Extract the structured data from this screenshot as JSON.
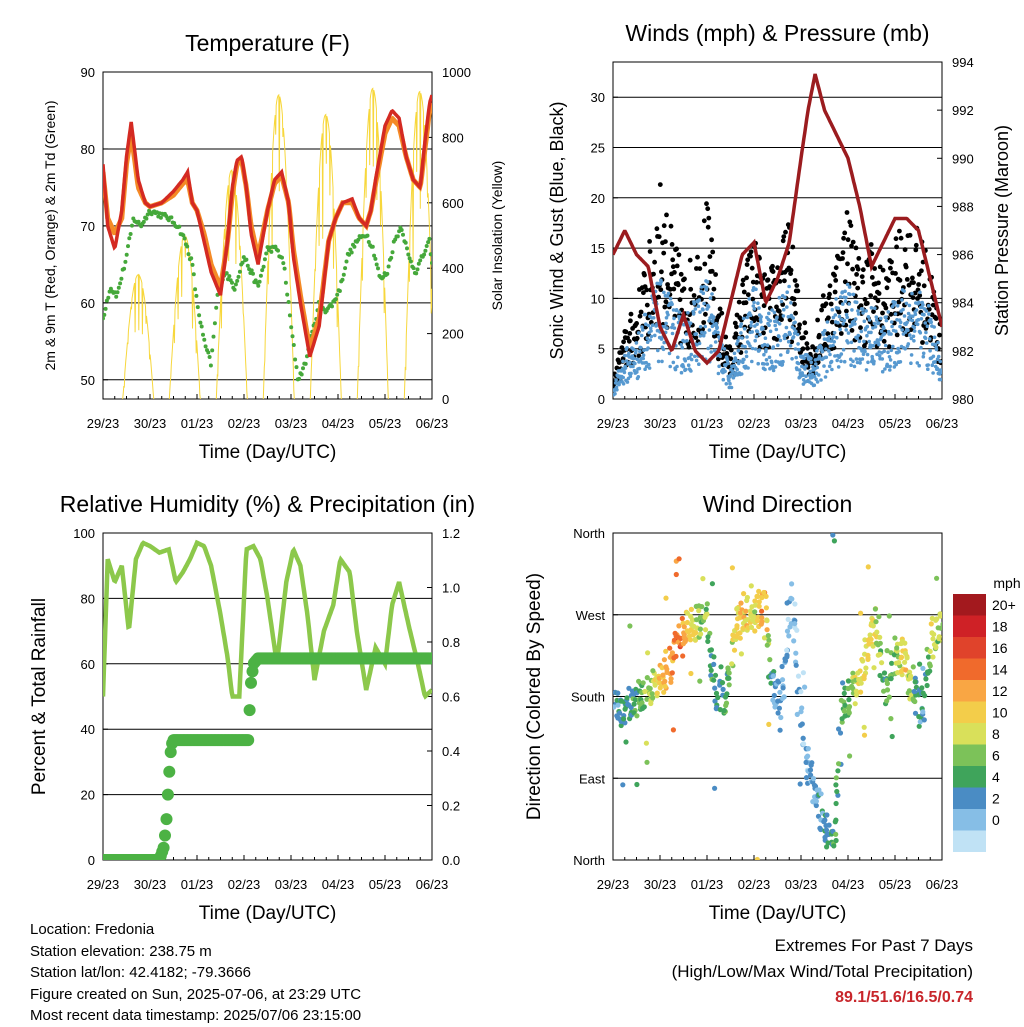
{
  "x_tick_labels": [
    "29/23",
    "30/23",
    "01/23",
    "02/23",
    "03/23",
    "04/23",
    "05/23",
    "06/23"
  ],
  "panels": {
    "temperature": {
      "title": "Temperature (F)",
      "ylabel_left": "2m & 9m T (Red, Orange) & 2m Td (Green)",
      "ylabel_right": "Solar Insolation (Yellow)",
      "xlabel": "Time (Day/UTC)",
      "yticks_left": [
        "50",
        "60",
        "70",
        "80",
        "90"
      ],
      "yticks_right": [
        "0",
        "200",
        "400",
        "600",
        "800",
        "1000"
      ]
    },
    "winds": {
      "title": "Winds (mph) & Pressure (mb)",
      "ylabel_left": "Sonic Wind & Gust (Blue, Black)",
      "ylabel_right": "Station Pressure (Maroon)",
      "xlabel": "Time (Day/UTC)",
      "yticks_left": [
        "0",
        "5",
        "10",
        "15",
        "20",
        "25",
        "30"
      ],
      "yticks_right": [
        "980",
        "982",
        "984",
        "986",
        "988",
        "990",
        "992",
        "994"
      ]
    },
    "humidity": {
      "title": "Relative Humidity (%) & Precipitation (in)",
      "ylabel_left": "Percent & Total Rainfall",
      "xlabel": "Time (Day/UTC)",
      "yticks_left": [
        "0",
        "20",
        "40",
        "60",
        "80",
        "100"
      ],
      "yticks_right": [
        "0.0",
        "0.2",
        "0.4",
        "0.6",
        "0.8",
        "1.0",
        "1.2"
      ]
    },
    "direction": {
      "title": "Wind Direction",
      "ylabel_left": "Direction (Colored By Speed)",
      "xlabel": "Time (Day/UTC)",
      "yticks_left": [
        "North",
        "East",
        "South",
        "West",
        "North"
      ],
      "legend_title": "mph",
      "legend_labels": [
        "20+",
        "18",
        "16",
        "14",
        "12",
        "10",
        "8",
        "6",
        "4",
        "2",
        "0"
      ],
      "legend_colors": [
        "#a3191e",
        "#cf2126",
        "#e0432b",
        "#f06a2c",
        "#f9a644",
        "#f3cd4a",
        "#d9e05a",
        "#7cc259",
        "#3fa45b",
        "#4a8cc4",
        "#86bee6",
        "#c0e2f5"
      ]
    }
  },
  "info": {
    "location": "Location: Fredonia",
    "elevation": "Station elevation: 238.75 m",
    "latlon": "Station lat/lon: 42.4182; -79.3666",
    "created": "Figure created on Sun, 2025-07-06, at 23:29 UTC",
    "recent": "Most recent data timestamp: 2025/07/06 23:15:00"
  },
  "extremes": {
    "line1": "Extremes For Past 7 Days",
    "line2": "(High/Low/Max Wind/Total Precipitation)",
    "values": "89.1/51.6/16.5/0.74"
  },
  "colors": {
    "temp2m": "#d42a22",
    "temp9m": "#f48a26",
    "dewpoint": "#45a83a",
    "solar": "#f7d73c",
    "gust": "#000000",
    "wind": "#5799d0",
    "pressure": "#9b1c1f",
    "rh": "#8cc84b",
    "rain": "#4cb244"
  },
  "chart_data": [
    {
      "type": "line",
      "title": "Temperature (F)",
      "xlabel": "Time (Day/UTC)",
      "ylabel": "2m & 9m T (Red, Orange) & 2m Td (Green)",
      "ylabel_right": "Solar Insolation (Yellow)",
      "x_categories": [
        "29/23",
        "30/23",
        "01/23",
        "02/23",
        "03/23",
        "04/23",
        "05/23",
        "06/23"
      ],
      "x_days": [
        0,
        1,
        2,
        3,
        4,
        5,
        6,
        7
      ],
      "ylim": [
        47.5,
        90
      ],
      "ylim_right": [
        0,
        1000
      ],
      "series": [
        {
          "name": "2m T",
          "axis": "left",
          "x": [
            0,
            0.1,
            0.25,
            0.4,
            0.5,
            0.6,
            0.75,
            0.9,
            1.0,
            1.25,
            1.5,
            1.7,
            1.8,
            1.9,
            2.0,
            2.15,
            2.3,
            2.5,
            2.65,
            2.75,
            2.85,
            2.95,
            3.05,
            3.15,
            3.3,
            3.5,
            3.65,
            3.8,
            3.95,
            4.05,
            4.2,
            4.4,
            4.6,
            4.8,
            4.95,
            5.1,
            5.3,
            5.45,
            5.6,
            5.7,
            5.8,
            6.0,
            6.15,
            6.3,
            6.45,
            6.6,
            6.75,
            6.85,
            6.95,
            7.0
          ],
          "y": [
            78,
            70,
            67,
            72,
            79,
            83.5,
            76,
            73,
            72.5,
            73,
            74.5,
            76,
            77,
            73,
            72,
            68,
            64,
            61,
            68,
            75,
            78.5,
            79,
            75,
            69,
            65,
            72,
            76,
            77,
            73,
            66,
            60,
            53,
            57,
            68,
            71,
            73,
            73.5,
            71,
            70,
            72,
            76,
            83,
            85,
            84,
            79,
            76,
            75,
            81,
            86,
            87
          ]
        },
        {
          "name": "9m T",
          "axis": "left",
          "x": [
            0,
            0.1,
            0.25,
            0.4,
            0.5,
            0.6,
            0.75,
            0.9,
            1.0,
            1.25,
            1.5,
            1.7,
            1.8,
            1.9,
            2.0,
            2.15,
            2.3,
            2.5,
            2.65,
            2.75,
            2.85,
            2.95,
            3.05,
            3.15,
            3.3,
            3.5,
            3.65,
            3.8,
            3.95,
            4.05,
            4.2,
            4.4,
            4.6,
            4.8,
            4.95,
            5.1,
            5.3,
            5.45,
            5.6,
            5.7,
            5.8,
            6.0,
            6.15,
            6.3,
            6.45,
            6.6,
            6.75,
            6.85,
            6.95,
            7.0
          ],
          "y": [
            77,
            71,
            69,
            71,
            78,
            82,
            75,
            73,
            72.5,
            73,
            74,
            75.5,
            76,
            73,
            72,
            69,
            65,
            62,
            68,
            74,
            78,
            78.5,
            75,
            70,
            66,
            72,
            75.5,
            76.5,
            73,
            67,
            61,
            54,
            58,
            68,
            71,
            73,
            73,
            71,
            70,
            72,
            75.5,
            82,
            84,
            83,
            79,
            76,
            75,
            80,
            85,
            86
          ]
        },
        {
          "name": "2m Td",
          "axis": "left",
          "x": [
            0,
            0.15,
            0.3,
            0.5,
            0.65,
            0.8,
            1.0,
            1.2,
            1.4,
            1.6,
            1.75,
            1.9,
            2.0,
            2.15,
            2.3,
            2.45,
            2.6,
            2.8,
            3.0,
            3.15,
            3.3,
            3.5,
            3.7,
            3.85,
            4.0,
            4.15,
            4.3,
            4.45,
            4.6,
            4.75,
            4.9,
            5.05,
            5.2,
            5.4,
            5.6,
            5.75,
            5.9,
            6.05,
            6.2,
            6.35,
            6.5,
            6.65,
            6.8,
            6.95,
            7.0
          ],
          "y": [
            58,
            62,
            61,
            66,
            71,
            70,
            72,
            71.5,
            71,
            70,
            68,
            65,
            60,
            55,
            52,
            62,
            64,
            62,
            66,
            64,
            62,
            67,
            67,
            65,
            57,
            50,
            52,
            56,
            60,
            59,
            60,
            62,
            66,
            68,
            69,
            67,
            63,
            64,
            68,
            70,
            66,
            64,
            66,
            68,
            65
          ]
        },
        {
          "name": "Solar Insolation",
          "axis": "right",
          "peaks_x": [
            0.75,
            1.74,
            2.74,
            3.74,
            4.74,
            5.74,
            6.74
          ],
          "peaks_y": [
            380,
            500,
            700,
            930,
            870,
            950,
            940
          ]
        }
      ]
    },
    {
      "type": "scatter",
      "title": "Winds (mph) & Pressure (mb)",
      "xlabel": "Time (Day/UTC)",
      "ylabel": "Sonic Wind & Gust (Blue, Black)",
      "ylabel_right": "Station Pressure (Maroon)",
      "x_categories": [
        "29/23",
        "30/23",
        "01/23",
        "02/23",
        "03/23",
        "04/23",
        "05/23",
        "06/23"
      ],
      "ylim": [
        0,
        33.5
      ],
      "ylim_right": [
        980,
        994
      ],
      "series": [
        {
          "name": "Gust envelope",
          "axis": "left",
          "x": [
            0,
            0.25,
            0.5,
            0.75,
            1.0,
            1.25,
            1.5,
            1.75,
            2.0,
            2.25,
            2.5,
            2.75,
            3.0,
            3.25,
            3.5,
            3.75,
            4.0,
            4.25,
            4.5,
            4.75,
            5.0,
            5.25,
            5.5,
            5.75,
            6.0,
            6.25,
            6.5,
            6.75,
            7.0
          ],
          "y": [
            2,
            7,
            10,
            15,
            22,
            17,
            13,
            15,
            20,
            10,
            5,
            12,
            17,
            12,
            15,
            18,
            9,
            6,
            11,
            15,
            20,
            14,
            16,
            13,
            16,
            18,
            17,
            14,
            7
          ]
        },
        {
          "name": "Wind envelope",
          "axis": "left",
          "x": [
            0,
            0.25,
            0.5,
            0.75,
            1.0,
            1.25,
            1.5,
            1.75,
            2.0,
            2.25,
            2.5,
            2.75,
            3.0,
            3.25,
            3.5,
            3.75,
            4.0,
            4.25,
            4.5,
            4.75,
            5.0,
            5.25,
            5.5,
            5.75,
            6.0,
            6.25,
            6.5,
            6.75,
            7.0
          ],
          "y": [
            1,
            5,
            6,
            10,
            12,
            10,
            8,
            10,
            13,
            7,
            3,
            8,
            12,
            8,
            10,
            12,
            5,
            4,
            7,
            10,
            12,
            9,
            10,
            8,
            10,
            12,
            11,
            9,
            4
          ]
        },
        {
          "name": "Station Pressure",
          "axis": "right",
          "x": [
            0,
            0.25,
            0.5,
            0.75,
            1.0,
            1.25,
            1.5,
            1.75,
            2.0,
            2.25,
            2.5,
            2.75,
            3.0,
            3.25,
            3.5,
            3.75,
            4.0,
            4.15,
            4.3,
            4.5,
            4.75,
            5.0,
            5.25,
            5.5,
            5.75,
            6.0,
            6.25,
            6.5,
            6.75,
            7.0
          ],
          "y": [
            986,
            987,
            986,
            985.5,
            983,
            982,
            983.5,
            982,
            981.5,
            982,
            984,
            986,
            986.5,
            984,
            985,
            986.5,
            990,
            992,
            993.5,
            992,
            991,
            990,
            988,
            985.5,
            986.5,
            987.5,
            987.5,
            987,
            985,
            983
          ]
        }
      ]
    },
    {
      "type": "line",
      "title": "Relative Humidity (%) & Precipitation (in)",
      "xlabel": "Time (Day/UTC)",
      "ylabel": "Percent & Total Rainfall",
      "x_categories": [
        "29/23",
        "30/23",
        "01/23",
        "02/23",
        "03/23",
        "04/23",
        "05/23",
        "06/23"
      ],
      "ylim": [
        0,
        100
      ],
      "ylim_right": [
        0,
        1.2
      ],
      "series": [
        {
          "name": "Relative Humidity",
          "axis": "left",
          "x": [
            0,
            0.1,
            0.25,
            0.4,
            0.55,
            0.7,
            0.85,
            1.0,
            1.2,
            1.4,
            1.55,
            1.7,
            1.85,
            2.0,
            2.15,
            2.3,
            2.5,
            2.65,
            2.75,
            2.9,
            3.05,
            3.2,
            3.35,
            3.5,
            3.7,
            3.9,
            4.05,
            4.2,
            4.35,
            4.5,
            4.7,
            4.9,
            5.05,
            5.25,
            5.4,
            5.6,
            5.8,
            6.0,
            6.15,
            6.3,
            6.5,
            6.7,
            6.85,
            7.0
          ],
          "y": [
            50,
            92,
            85,
            90,
            70,
            92,
            97,
            96,
            94,
            95,
            85,
            88,
            92,
            97,
            96,
            90,
            75,
            62,
            50,
            50,
            95,
            96,
            92,
            80,
            60,
            85,
            95,
            90,
            75,
            55,
            70,
            78,
            92,
            88,
            70,
            52,
            65,
            60,
            78,
            85,
            72,
            60,
            50,
            52
          ]
        },
        {
          "name": "Total Precipitation",
          "axis": "right",
          "x": [
            0,
            1.2,
            1.3,
            1.35,
            1.4,
            1.45,
            1.5,
            3.0,
            3.1,
            3.12,
            3.15,
            3.2,
            3.3,
            7.0
          ],
          "y": [
            0,
            0,
            0.05,
            0.15,
            0.3,
            0.42,
            0.44,
            0.44,
            0.44,
            0.55,
            0.65,
            0.72,
            0.74,
            0.74
          ]
        }
      ]
    },
    {
      "type": "scatter",
      "title": "Wind Direction",
      "xlabel": "Time (Day/UTC)",
      "ylabel": "Direction (Colored By Speed)",
      "x_categories": [
        "29/23",
        "30/23",
        "01/23",
        "02/23",
        "03/23",
        "04/23",
        "05/23",
        "06/23"
      ],
      "yticks": [
        "North",
        "East",
        "South",
        "West",
        "North"
      ],
      "ylim": [
        0,
        360
      ],
      "series": [
        {
          "name": "Direction",
          "x": [
            0.1,
            0.3,
            0.5,
            0.7,
            0.9,
            1.0,
            1.2,
            1.4,
            1.6,
            1.75,
            1.9,
            2.0,
            2.2,
            2.4,
            2.6,
            2.8,
            3.0,
            3.2,
            3.4,
            3.6,
            3.8,
            4.0,
            4.1,
            4.3,
            4.5,
            4.7,
            4.9,
            5.0,
            5.2,
            5.4,
            5.6,
            5.8,
            6.0,
            6.2,
            6.4,
            6.6,
            6.8,
            7.0
          ],
          "y": [
            165,
            170,
            175,
            185,
            190,
            200,
            215,
            240,
            255,
            260,
            265,
            265,
            175,
            185,
            255,
            275,
            265,
            285,
            190,
            170,
            290,
            150,
            115,
            80,
            35,
            10,
            175,
            180,
            195,
            225,
            265,
            190,
            215,
            230,
            185,
            165,
            245,
            260
          ],
          "speeds": [
            4,
            5,
            6,
            8,
            10,
            12,
            14,
            16,
            12,
            10,
            8,
            8,
            4,
            6,
            12,
            12,
            10,
            14,
            4,
            3,
            2,
            2,
            2,
            3,
            4,
            6,
            6,
            8,
            10,
            12,
            10,
            6,
            8,
            12,
            6,
            4,
            10,
            8
          ]
        }
      ]
    }
  ]
}
